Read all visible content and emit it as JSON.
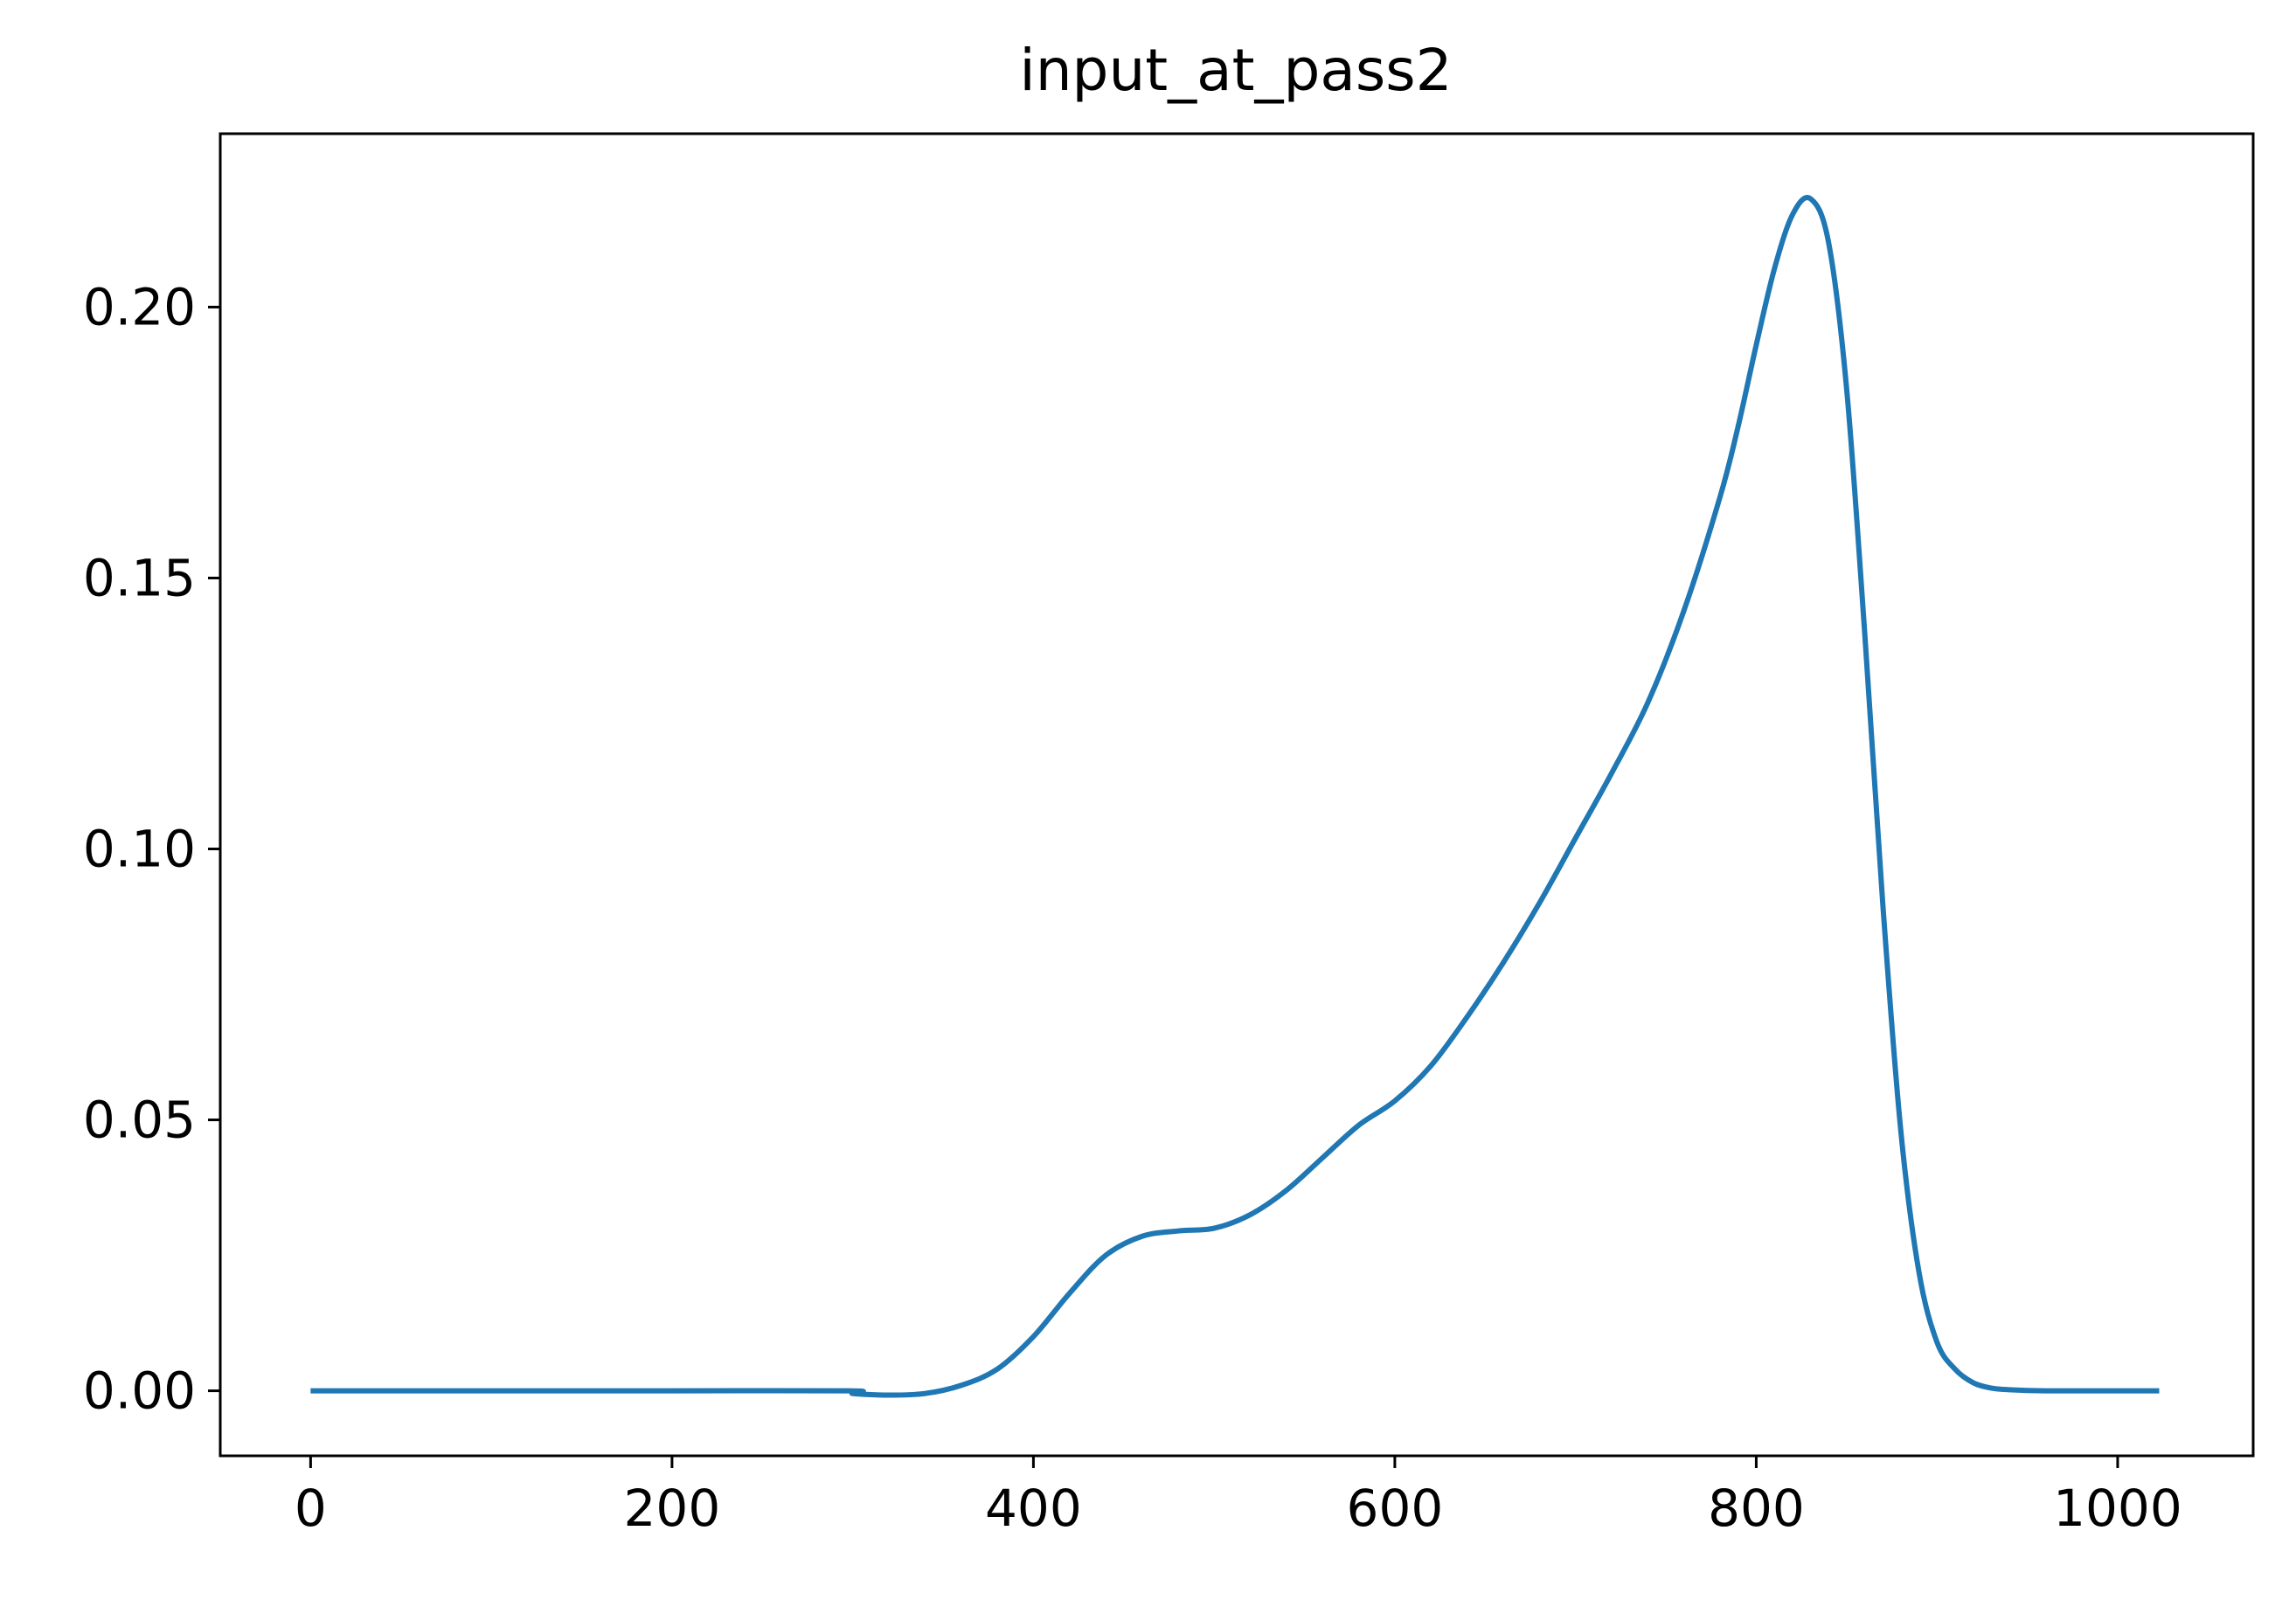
{
  "chart_data": {
    "type": "line",
    "title": "input_at_pass2",
    "xlabel": "",
    "ylabel": "",
    "xlim": [
      -50,
      1075
    ],
    "ylim": [
      -0.012,
      0.232
    ],
    "xticks": [
      0,
      200,
      400,
      600,
      800,
      1000
    ],
    "xtick_labels": [
      "0",
      "200",
      "400",
      "600",
      "800",
      "1000"
    ],
    "yticks": [
      0.0,
      0.05,
      0.1,
      0.15,
      0.2
    ],
    "ytick_labels": [
      "0.00",
      "0.05",
      "0.10",
      "0.15",
      "0.20"
    ],
    "grid": false,
    "legend": "none",
    "series": [
      {
        "color": "#1f77b4",
        "x": [
          0,
          100,
          200,
          299,
          300,
          320,
          340,
          360,
          380,
          400,
          420,
          440,
          460,
          480,
          500,
          520,
          540,
          560,
          580,
          600,
          620,
          640,
          660,
          680,
          700,
          720,
          740,
          760,
          780,
          790,
          800,
          810,
          820,
          830,
          840,
          850,
          860,
          870,
          880,
          890,
          900,
          910,
          920,
          930,
          940,
          960,
          1000,
          1023
        ],
        "y": [
          0,
          0,
          0,
          0,
          -0.0005,
          -0.0008,
          -0.0005,
          0.001,
          0.004,
          0.01,
          0.018,
          0.025,
          0.0285,
          0.0295,
          0.03,
          0.0325,
          0.037,
          0.043,
          0.049,
          0.0535,
          0.06,
          0.069,
          0.079,
          0.09,
          0.102,
          0.114,
          0.127,
          0.144,
          0.165,
          0.178,
          0.193,
          0.207,
          0.217,
          0.22,
          0.212,
          0.185,
          0.14,
          0.09,
          0.048,
          0.022,
          0.009,
          0.004,
          0.0015,
          0.0005,
          0.0002,
          0,
          0,
          0
        ]
      }
    ]
  }
}
